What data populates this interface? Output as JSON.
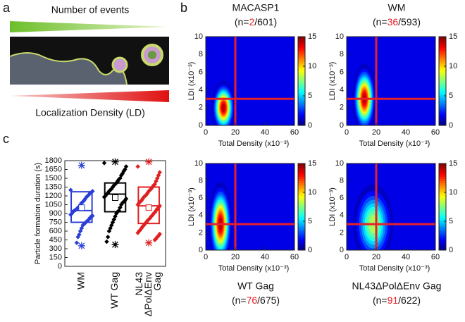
{
  "panel_labels": [
    "a",
    "b",
    "c"
  ],
  "schematic": {
    "top_label": "Number of events",
    "bottom_label": "Localization Density (LD)"
  },
  "chart_data": [
    {
      "type": "contour",
      "title": "MACASP1",
      "subtitle": {
        "prefix": "(n=",
        "count": 2,
        "rest": "/601)"
      },
      "xlabel": "Total Density (x10⁻³)",
      "ylabel": "LDI (x10⁻³)",
      "xlim": [
        0,
        60
      ],
      "xticks": [
        0,
        20,
        40,
        60
      ],
      "ylim": [
        0,
        10
      ],
      "yticks": [
        0,
        2,
        4,
        6,
        8,
        10
      ],
      "clim": [
        0,
        15
      ],
      "cticks": [
        0,
        5,
        10,
        15
      ],
      "peak": {
        "x": 12,
        "y": 2,
        "value": 15
      },
      "spread": {
        "x": 3.5,
        "y": 1.3
      },
      "thresholds": {
        "x": 20,
        "y": 3
      },
      "threshold_color": "#e8202a"
    },
    {
      "type": "contour",
      "title": "WM",
      "subtitle": {
        "prefix": "(n=",
        "count": 36,
        "rest": "/593)"
      },
      "xlabel": "Total Density (x10⁻³)",
      "ylabel": "LDI (x10⁻³)",
      "xlim": [
        0,
        60
      ],
      "xticks": [
        0,
        20,
        40,
        60
      ],
      "ylim": [
        0,
        10
      ],
      "yticks": [
        0,
        2,
        4,
        6,
        8,
        10
      ],
      "clim": [
        0,
        15
      ],
      "cticks": [
        0,
        5,
        10,
        15
      ],
      "peak": {
        "x": 12,
        "y": 3,
        "value": 15
      },
      "spread": {
        "x": 3.5,
        "y": 1.7
      },
      "thresholds": {
        "x": 20,
        "y": 3
      },
      "threshold_color": "#e8202a"
    },
    {
      "type": "contour",
      "title": "WT Gag",
      "subtitle": {
        "prefix": "(n=",
        "count": 76,
        "rest": "/675)"
      },
      "xlabel": "Total Density (x10⁻³)",
      "ylabel": "LDI (x10⁻³)",
      "xlim": [
        0,
        60
      ],
      "xticks": [
        0,
        20,
        40,
        60
      ],
      "ylim": [
        0,
        10
      ],
      "yticks": [
        0,
        2,
        4,
        6,
        8,
        10
      ],
      "clim": [
        0,
        15
      ],
      "cticks": [
        0,
        5,
        10,
        15
      ],
      "peak": {
        "x": 10,
        "y": 3,
        "value": 15
      },
      "spread": {
        "x": 3.5,
        "y": 2.1
      },
      "thresholds": {
        "x": 20,
        "y": 3
      },
      "threshold_color": "#e8202a"
    },
    {
      "type": "contour",
      "title": "NL43ΔPolΔEnv Gag",
      "subtitle": {
        "prefix": "(n=",
        "count": 91,
        "rest": "/622)"
      },
      "xlabel": "Total Density (x10⁻³)",
      "ylabel": "LDI (x10⁻³)",
      "xlim": [
        0,
        60
      ],
      "xticks": [
        0,
        20,
        40,
        60
      ],
      "ylim": [
        0,
        10
      ],
      "yticks": [
        0,
        2,
        4,
        6,
        8,
        10
      ],
      "clim": [
        0,
        15
      ],
      "cticks": [
        0,
        5,
        10,
        15
      ],
      "peak": {
        "x": 18,
        "y": 3,
        "value": 9
      },
      "spread": {
        "x": 6.5,
        "y": 2.2
      },
      "thresholds": {
        "x": 20,
        "y": 3
      },
      "threshold_color": "#e8202a"
    },
    {
      "type": "box",
      "ylabel": "Particle formation duration (s)",
      "ylim": [
        0,
        1800
      ],
      "yticks": [
        0,
        150,
        300,
        450,
        600,
        750,
        900,
        1050,
        1200,
        1350,
        1500,
        1650,
        1800
      ],
      "categories": [
        [
          "WM"
        ],
        [
          "WT Gag"
        ],
        [
          "NL43",
          "ΔPolΔEnv",
          "Gag"
        ]
      ],
      "colors": [
        "#2b3fd6",
        "#000000",
        "#e02020"
      ],
      "stats": [
        {
          "min": 350,
          "q1": 750,
          "median": 950,
          "mean": 1000,
          "q3": 1270,
          "max": 1720
        },
        {
          "min": 370,
          "q1": 930,
          "median": 1230,
          "mean": 1170,
          "q3": 1420,
          "max": 1780
        },
        {
          "min": 400,
          "q1": 730,
          "median": 1030,
          "mean": 1000,
          "q3": 1350,
          "max": 1780
        }
      ],
      "points": [
        [
          1300,
          1280,
          1260,
          1250,
          1220,
          1200,
          1180,
          1150,
          1120,
          1100,
          1080,
          1050,
          1020,
          1000,
          980,
          960,
          950,
          930,
          900,
          880,
          860,
          850,
          830,
          800,
          780,
          760,
          740,
          720,
          700,
          650,
          600,
          540,
          500,
          400
        ],
        [
          1760,
          1700,
          1650,
          1620,
          1580,
          1550,
          1500,
          1480,
          1450,
          1420,
          1400,
          1380,
          1350,
          1320,
          1300,
          1280,
          1250,
          1230,
          1200,
          1180,
          1150,
          1120,
          1100,
          1080,
          1050,
          1000,
          950,
          930,
          900,
          850,
          800,
          750,
          700,
          650,
          600,
          500,
          420
        ],
        [
          1700,
          1600,
          1550,
          1500,
          1450,
          1400,
          1380,
          1350,
          1320,
          1300,
          1280,
          1250,
          1220,
          1200,
          1180,
          1150,
          1120,
          1100,
          1080,
          1050,
          1030,
          1000,
          980,
          950,
          920,
          900,
          870,
          850,
          820,
          800,
          780,
          750,
          730,
          700,
          680,
          650,
          620,
          600,
          570,
          550,
          520,
          500,
          470,
          450
        ]
      ]
    }
  ]
}
